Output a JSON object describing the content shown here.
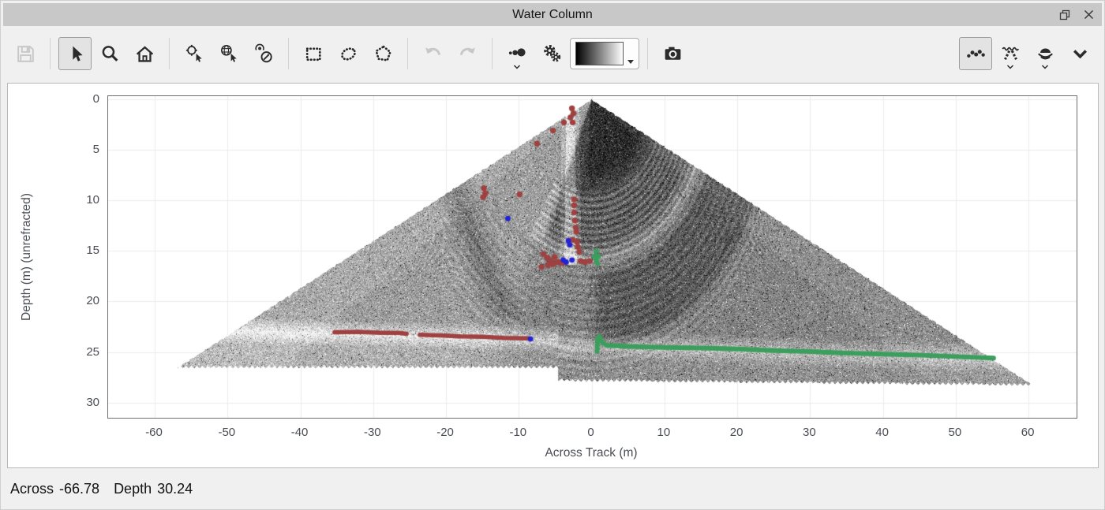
{
  "window": {
    "title": "Water Column",
    "titlebar_buttons": [
      {
        "name": "float-window-button",
        "icon": "float-icon"
      },
      {
        "name": "close-window-button",
        "icon": "close-icon"
      }
    ]
  },
  "toolbar": {
    "left_tools": [
      {
        "name": "save-button",
        "icon": "floppy-icon",
        "enabled": false
      },
      {
        "type": "separator"
      },
      {
        "name": "select-tool-button",
        "icon": "cursor-arrow-icon",
        "active": true
      },
      {
        "name": "zoom-tool-button",
        "icon": "magnifier-icon"
      },
      {
        "name": "home-view-button",
        "icon": "home-icon"
      },
      {
        "type": "separator"
      },
      {
        "name": "pick-position-tool-button",
        "icon": "crosshair-cursor-icon"
      },
      {
        "name": "pick-geographic-tool-button",
        "icon": "globe-cursor-icon"
      },
      {
        "name": "pick-beam-tool-button",
        "icon": "compass-point-icon"
      },
      {
        "type": "separator"
      },
      {
        "name": "rectangle-select-button",
        "icon": "dotted-rectangle-icon"
      },
      {
        "name": "ellipse-select-button",
        "icon": "dotted-ellipse-icon"
      },
      {
        "name": "polygon-select-button",
        "icon": "dotted-polygon-icon"
      },
      {
        "type": "separator"
      },
      {
        "name": "undo-button",
        "icon": "undo-arrow-icon",
        "enabled": false
      },
      {
        "name": "redo-button",
        "icon": "redo-arrow-icon",
        "enabled": false
      },
      {
        "type": "separator"
      },
      {
        "name": "point-size-button",
        "icon": "dot-sizes-icon",
        "has_dropdown": true
      },
      {
        "name": "display-settings-button",
        "icon": "gears-icon"
      },
      {
        "name": "colormap-select",
        "type": "colormap",
        "gradient_from": "#000000",
        "gradient_to": "#ffffff"
      },
      {
        "type": "separator"
      },
      {
        "name": "snapshot-button",
        "icon": "camera-icon"
      }
    ],
    "right_tools": [
      {
        "name": "points-view-button",
        "icon": "dot-arc-icon",
        "active": true
      },
      {
        "name": "beams-view-button",
        "icon": "beam-fan-icon",
        "has_dropdown": true
      },
      {
        "name": "fan-view-button",
        "icon": "sonar-fan-icon",
        "has_dropdown": true
      },
      {
        "name": "collapse-toolbar-button",
        "icon": "chevron-down-icon"
      }
    ]
  },
  "statusbar": {
    "across_label": "Across",
    "across_value": "-66.78",
    "depth_label": "Depth",
    "depth_value": "30.24"
  },
  "chart_data": {
    "type": "heatmap",
    "title": "Water Column",
    "xlabel": "Across Track (m)",
    "ylabel": "Depth (m) (unrefracted)",
    "xlim": [
      -66.4,
      66.6
    ],
    "ylim": [
      -0.3,
      31.5
    ],
    "y_inverted": true,
    "x_ticks": [
      -60,
      -50,
      -40,
      -30,
      -20,
      -10,
      0,
      10,
      20,
      30,
      40,
      50,
      60
    ],
    "y_ticks": [
      0,
      5,
      10,
      15,
      20,
      25,
      30
    ],
    "grid": true,
    "grid_color": "#ececec",
    "colormap": "grayscale-black-to-white",
    "fan": {
      "apex": {
        "across": 0,
        "depth": 0
      },
      "half_angle_deg": 65,
      "left_tip": {
        "across": -57.4,
        "depth": 26.65
      },
      "right_tip": {
        "across": 60.9,
        "depth": 28.35
      },
      "bottom_step_across": -4.66,
      "bottom_left_depth": 26.65,
      "bottom_right_depth_at_step": 27.9,
      "plume": {
        "across": -2.9,
        "top_depth": 0.8,
        "bottom_depth": 16.4
      }
    },
    "series": [
      {
        "name": "rejected-bottom-track",
        "type": "track",
        "color": "#9e4140",
        "width": 5.5,
        "segments": [
          [
            [
              -35.3,
              23.05
            ],
            [
              -32,
              23.0
            ],
            [
              -29,
              23.1
            ],
            [
              -26.5,
              23.1
            ],
            [
              -25.4,
              23.2
            ]
          ],
          [
            [
              -23.6,
              23.3
            ],
            [
              -21,
              23.35
            ],
            [
              -18,
              23.45
            ],
            [
              -15,
              23.5
            ],
            [
              -12,
              23.6
            ],
            [
              -8.7,
              23.65
            ]
          ]
        ]
      },
      {
        "name": "accepted-bottom-track",
        "type": "track",
        "color": "#3b9e5c",
        "width": 6,
        "segments": [
          [
            [
              0.75,
              24.95
            ],
            [
              0.8,
              23.7
            ],
            [
              1.05,
              23.45
            ],
            [
              1.5,
              24.1
            ],
            [
              2.2,
              24.35
            ],
            [
              5,
              24.45
            ],
            [
              10,
              24.55
            ],
            [
              15,
              24.6
            ],
            [
              20,
              24.7
            ],
            [
              25,
              24.85
            ],
            [
              30,
              24.95
            ],
            [
              35,
              25.1
            ],
            [
              40,
              25.2
            ],
            [
              45,
              25.3
            ],
            [
              50,
              25.45
            ],
            [
              55.2,
              25.6
            ]
          ]
        ]
      },
      {
        "name": "red-water-column-picks",
        "type": "scatter",
        "color": "#9e4140",
        "radius": 3.7,
        "points": [
          [
            -2.7,
            0.9
          ],
          [
            -2.5,
            1.4
          ],
          [
            -2.9,
            1.8
          ],
          [
            -2.6,
            2.3
          ],
          [
            -3.8,
            2.3
          ],
          [
            -5.3,
            3.1
          ],
          [
            -7.5,
            4.4
          ],
          [
            -14.8,
            8.8
          ],
          [
            -14.6,
            9.3
          ],
          [
            -14.9,
            9.7
          ],
          [
            -9.9,
            9.4
          ],
          [
            -2.4,
            9.9
          ],
          [
            -2.4,
            10.5
          ],
          [
            -2.4,
            11.2
          ],
          [
            -2.3,
            12.0
          ],
          [
            -2.2,
            12.7
          ],
          [
            -2.1,
            13.1
          ],
          [
            -2.6,
            13.9
          ],
          [
            -2.0,
            14.1
          ],
          [
            -1.9,
            14.6
          ],
          [
            -1.7,
            15.1
          ],
          [
            -6.6,
            15.3
          ],
          [
            -6.1,
            15.7
          ],
          [
            -5.6,
            16.0
          ],
          [
            -5.1,
            15.6
          ],
          [
            -4.7,
            16.1
          ],
          [
            -4.2,
            16.2
          ],
          [
            -3.7,
            16.1
          ],
          [
            -6.0,
            16.4
          ],
          [
            -5.3,
            16.3
          ],
          [
            -6.9,
            16.6
          ],
          [
            -1.5,
            16.0
          ],
          [
            -0.9,
            16.1
          ],
          [
            -0.3,
            16.0
          ]
        ]
      },
      {
        "name": "blue-water-column-picks",
        "type": "scatter",
        "color": "#2323d6",
        "radius": 3.4,
        "points": [
          [
            -11.5,
            11.8
          ],
          [
            -3.2,
            14.0
          ],
          [
            -3.0,
            14.4
          ],
          [
            -3.9,
            15.9
          ],
          [
            -3.5,
            16.1
          ],
          [
            -2.7,
            15.9
          ],
          [
            -8.4,
            23.7
          ]
        ]
      },
      {
        "name": "green-pick-cluster",
        "type": "scatter",
        "color": "#3b9e5c",
        "radius": 3.2,
        "points": [
          [
            0.65,
            15.0
          ],
          [
            0.65,
            15.45
          ],
          [
            0.35,
            15.55
          ],
          [
            0.95,
            15.55
          ],
          [
            0.65,
            15.95
          ],
          [
            0.8,
            16.25
          ]
        ]
      }
    ]
  }
}
